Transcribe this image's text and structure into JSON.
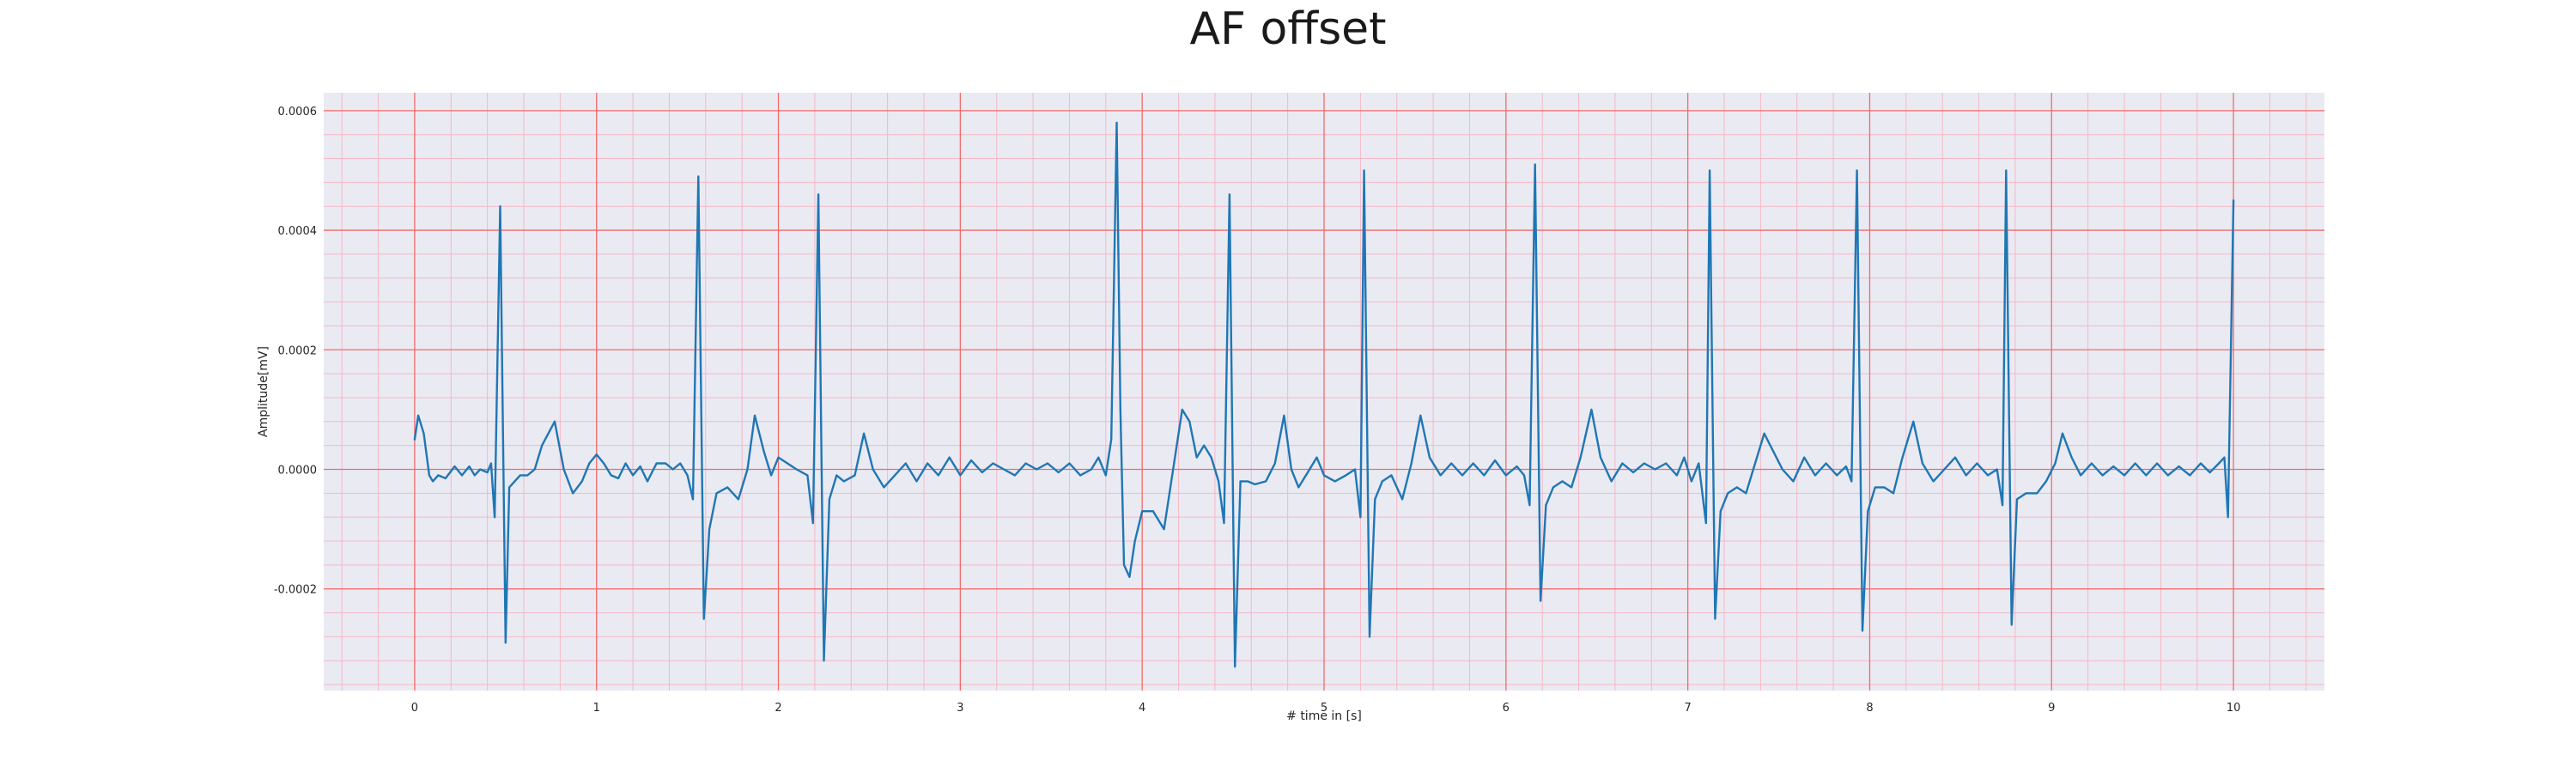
{
  "chart_data": {
    "type": "line",
    "title": "AF offset",
    "xlabel": "# time in [s]",
    "ylabel": "Amplitude[mV]",
    "xlim": [
      -0.5,
      10.5
    ],
    "ylim": [
      -0.00037,
      0.00063
    ],
    "x_ticks": [
      0,
      1,
      2,
      3,
      4,
      5,
      6,
      7,
      8,
      9,
      10
    ],
    "y_ticks": [
      -0.0002,
      0.0,
      0.0002,
      0.0004,
      0.0006
    ],
    "x_tick_labels": [
      "0",
      "1",
      "2",
      "3",
      "4",
      "5",
      "6",
      "7",
      "8",
      "9",
      "10"
    ],
    "y_tick_labels": [
      "-0.0002",
      "0.0000",
      "0.0002",
      "0.0004",
      "0.0006"
    ],
    "grid": true,
    "minor_grid": true,
    "colors": {
      "line": "#1f77b4",
      "plot_background": "#eaeaf2",
      "major_grid": "#f26b6b",
      "minor_grid": "#f5b8c6"
    },
    "series": [
      {
        "points": [
          [
            0.0,
            5e-05
          ],
          [
            0.02,
            9e-05
          ],
          [
            0.05,
            6e-05
          ],
          [
            0.08,
            -1e-05
          ],
          [
            0.1,
            -2e-05
          ],
          [
            0.13,
            -1e-05
          ],
          [
            0.17,
            -1.5e-05
          ],
          [
            0.22,
            5e-06
          ],
          [
            0.26,
            -1e-05
          ],
          [
            0.3,
            5e-06
          ],
          [
            0.33,
            -1e-05
          ],
          [
            0.36,
            0.0
          ],
          [
            0.4,
            -5e-06
          ],
          [
            0.42,
            1e-05
          ],
          [
            0.44,
            -8e-05
          ],
          [
            0.47,
            0.00044
          ],
          [
            0.5,
            -0.00029
          ],
          [
            0.52,
            -3e-05
          ],
          [
            0.55,
            -2e-05
          ],
          [
            0.58,
            -1e-05
          ],
          [
            0.62,
            -1e-05
          ],
          [
            0.66,
            0.0
          ],
          [
            0.7,
            4e-05
          ],
          [
            0.77,
            8e-05
          ],
          [
            0.82,
            0.0
          ],
          [
            0.87,
            -4e-05
          ],
          [
            0.92,
            -2e-05
          ],
          [
            0.96,
            1e-05
          ],
          [
            1.0,
            2.5e-05
          ],
          [
            1.04,
            1e-05
          ],
          [
            1.08,
            -1e-05
          ],
          [
            1.12,
            -1.5e-05
          ],
          [
            1.16,
            1e-05
          ],
          [
            1.2,
            -1e-05
          ],
          [
            1.24,
            5e-06
          ],
          [
            1.28,
            -2e-05
          ],
          [
            1.33,
            1e-05
          ],
          [
            1.38,
            1e-05
          ],
          [
            1.42,
            0.0
          ],
          [
            1.46,
            1e-05
          ],
          [
            1.5,
            -1e-05
          ],
          [
            1.53,
            -5e-05
          ],
          [
            1.56,
            0.00049
          ],
          [
            1.59,
            -0.00025
          ],
          [
            1.62,
            -0.0001
          ],
          [
            1.66,
            -4e-05
          ],
          [
            1.72,
            -3e-05
          ],
          [
            1.78,
            -5e-05
          ],
          [
            1.83,
            0.0
          ],
          [
            1.87,
            9e-05
          ],
          [
            1.92,
            3e-05
          ],
          [
            1.96,
            -1e-05
          ],
          [
            2.0,
            2e-05
          ],
          [
            2.05,
            1e-05
          ],
          [
            2.1,
            0.0
          ],
          [
            2.16,
            -1e-05
          ],
          [
            2.19,
            -9e-05
          ],
          [
            2.22,
            0.00046
          ],
          [
            2.25,
            -0.00032
          ],
          [
            2.28,
            -5e-05
          ],
          [
            2.32,
            -1e-05
          ],
          [
            2.36,
            -2e-05
          ],
          [
            2.42,
            -1e-05
          ],
          [
            2.47,
            6e-05
          ],
          [
            2.52,
            0.0
          ],
          [
            2.58,
            -3e-05
          ],
          [
            2.64,
            -1e-05
          ],
          [
            2.7,
            1e-05
          ],
          [
            2.76,
            -2e-05
          ],
          [
            2.82,
            1e-05
          ],
          [
            2.88,
            -1e-05
          ],
          [
            2.94,
            2e-05
          ],
          [
            3.0,
            -1e-05
          ],
          [
            3.06,
            1.5e-05
          ],
          [
            3.12,
            -5e-06
          ],
          [
            3.18,
            1e-05
          ],
          [
            3.24,
            0.0
          ],
          [
            3.3,
            -1e-05
          ],
          [
            3.36,
            1e-05
          ],
          [
            3.42,
            0.0
          ],
          [
            3.48,
            1e-05
          ],
          [
            3.54,
            -5e-06
          ],
          [
            3.6,
            1e-05
          ],
          [
            3.66,
            -1e-05
          ],
          [
            3.72,
            0.0
          ],
          [
            3.76,
            2e-05
          ],
          [
            3.8,
            -1e-05
          ],
          [
            3.83,
            5e-05
          ],
          [
            3.86,
            0.00058
          ],
          [
            3.88,
            0.0001
          ],
          [
            3.9,
            -0.00016
          ],
          [
            3.93,
            -0.00018
          ],
          [
            3.96,
            -0.00012
          ],
          [
            4.0,
            -7e-05
          ],
          [
            4.06,
            -7e-05
          ],
          [
            4.12,
            -0.0001
          ],
          [
            4.17,
            0.0
          ],
          [
            4.22,
            0.0001
          ],
          [
            4.26,
            8e-05
          ],
          [
            4.3,
            2e-05
          ],
          [
            4.34,
            4e-05
          ],
          [
            4.38,
            2e-05
          ],
          [
            4.42,
            -2e-05
          ],
          [
            4.45,
            -9e-05
          ],
          [
            4.48,
            0.00046
          ],
          [
            4.51,
            -0.00033
          ],
          [
            4.54,
            -2e-05
          ],
          [
            4.58,
            -2e-05
          ],
          [
            4.62,
            -2.5e-05
          ],
          [
            4.68,
            -2e-05
          ],
          [
            4.73,
            1e-05
          ],
          [
            4.78,
            9e-05
          ],
          [
            4.82,
            0.0
          ],
          [
            4.86,
            -3e-05
          ],
          [
            4.92,
            0.0
          ],
          [
            4.96,
            2e-05
          ],
          [
            5.0,
            -1e-05
          ],
          [
            5.06,
            -2e-05
          ],
          [
            5.12,
            -1e-05
          ],
          [
            5.17,
            0.0
          ],
          [
            5.2,
            -8e-05
          ],
          [
            5.22,
            0.0005
          ],
          [
            5.25,
            -0.00028
          ],
          [
            5.28,
            -5e-05
          ],
          [
            5.32,
            -2e-05
          ],
          [
            5.37,
            -1e-05
          ],
          [
            5.43,
            -5e-05
          ],
          [
            5.48,
            1e-05
          ],
          [
            5.53,
            9e-05
          ],
          [
            5.58,
            2e-05
          ],
          [
            5.64,
            -1e-05
          ],
          [
            5.7,
            1e-05
          ],
          [
            5.76,
            -1e-05
          ],
          [
            5.82,
            1e-05
          ],
          [
            5.88,
            -1e-05
          ],
          [
            5.94,
            1.5e-05
          ],
          [
            6.0,
            -1e-05
          ],
          [
            6.06,
            5e-06
          ],
          [
            6.1,
            -1e-05
          ],
          [
            6.13,
            -6e-05
          ],
          [
            6.16,
            0.00051
          ],
          [
            6.19,
            -0.00022
          ],
          [
            6.22,
            -6e-05
          ],
          [
            6.26,
            -3e-05
          ],
          [
            6.31,
            -2e-05
          ],
          [
            6.36,
            -3e-05
          ],
          [
            6.41,
            2e-05
          ],
          [
            6.47,
            0.0001
          ],
          [
            6.52,
            2e-05
          ],
          [
            6.58,
            -2e-05
          ],
          [
            6.64,
            1e-05
          ],
          [
            6.7,
            -5e-06
          ],
          [
            6.76,
            1e-05
          ],
          [
            6.82,
            0.0
          ],
          [
            6.88,
            1e-05
          ],
          [
            6.94,
            -1e-05
          ],
          [
            6.98,
            2e-05
          ],
          [
            7.02,
            -2e-05
          ],
          [
            7.06,
            1e-05
          ],
          [
            7.1,
            -9e-05
          ],
          [
            7.12,
            0.0005
          ],
          [
            7.15,
            -0.00025
          ],
          [
            7.18,
            -7e-05
          ],
          [
            7.22,
            -4e-05
          ],
          [
            7.27,
            -3e-05
          ],
          [
            7.32,
            -4e-05
          ],
          [
            7.37,
            1e-05
          ],
          [
            7.42,
            6e-05
          ],
          [
            7.47,
            3e-05
          ],
          [
            7.52,
            0.0
          ],
          [
            7.58,
            -2e-05
          ],
          [
            7.64,
            2e-05
          ],
          [
            7.7,
            -1e-05
          ],
          [
            7.76,
            1e-05
          ],
          [
            7.82,
            -1e-05
          ],
          [
            7.87,
            5e-06
          ],
          [
            7.9,
            -2e-05
          ],
          [
            7.93,
            0.0005
          ],
          [
            7.96,
            -0.00027
          ],
          [
            7.99,
            -7e-05
          ],
          [
            8.03,
            -3e-05
          ],
          [
            8.08,
            -3e-05
          ],
          [
            8.13,
            -4e-05
          ],
          [
            8.18,
            2e-05
          ],
          [
            8.24,
            8e-05
          ],
          [
            8.29,
            1e-05
          ],
          [
            8.35,
            -2e-05
          ],
          [
            8.41,
            0.0
          ],
          [
            8.47,
            2e-05
          ],
          [
            8.53,
            -1e-05
          ],
          [
            8.59,
            1e-05
          ],
          [
            8.65,
            -1e-05
          ],
          [
            8.7,
            0.0
          ],
          [
            8.73,
            -6e-05
          ],
          [
            8.75,
            0.0005
          ],
          [
            8.78,
            -0.00026
          ],
          [
            8.81,
            -5e-05
          ],
          [
            8.86,
            -4e-05
          ],
          [
            8.92,
            -4e-05
          ],
          [
            8.97,
            -2e-05
          ],
          [
            9.02,
            1e-05
          ],
          [
            9.06,
            6e-05
          ],
          [
            9.11,
            2e-05
          ],
          [
            9.16,
            -1e-05
          ],
          [
            9.22,
            1e-05
          ],
          [
            9.28,
            -1e-05
          ],
          [
            9.34,
            5e-06
          ],
          [
            9.4,
            -1e-05
          ],
          [
            9.46,
            1e-05
          ],
          [
            9.52,
            -1e-05
          ],
          [
            9.58,
            1e-05
          ],
          [
            9.64,
            -1e-05
          ],
          [
            9.7,
            5e-06
          ],
          [
            9.76,
            -1e-05
          ],
          [
            9.82,
            1e-05
          ],
          [
            9.87,
            -5e-06
          ],
          [
            9.92,
            1e-05
          ],
          [
            9.95,
            2e-05
          ],
          [
            9.97,
            -8e-05
          ],
          [
            10.0,
            0.00045
          ]
        ]
      }
    ]
  }
}
